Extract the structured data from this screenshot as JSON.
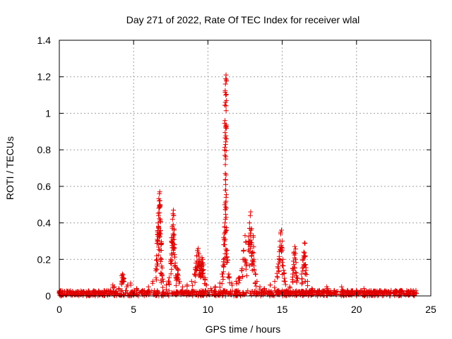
{
  "chart_data": {
    "type": "scatter",
    "title": "Day 271 of 2022, Rate Of TEC Index for receiver wlal",
    "xlabel": "GPS time / hours",
    "ylabel": "ROTI / TECUs",
    "xlim": [
      0,
      25
    ],
    "ylim": [
      0,
      1.4
    ],
    "xticks": [
      0,
      5,
      10,
      15,
      20,
      25
    ],
    "xtick_labels": [
      "0",
      "5",
      "10",
      "15",
      "20",
      "25"
    ],
    "yticks": [
      0,
      0.2,
      0.4,
      0.6,
      0.8,
      1.0,
      1.2,
      1.4
    ],
    "ytick_labels": [
      "0",
      "0.2",
      "0.4",
      "0.6",
      "0.8",
      "1",
      "1.2",
      "1.4"
    ],
    "grid": true,
    "marker": "plus",
    "color": "#e00000",
    "baseline_noise": {
      "x_range": [
        0,
        24
      ],
      "y_range": [
        0.0,
        0.03
      ]
    },
    "series": [
      {
        "points": [
          [
            0.05,
            0.02
          ],
          [
            0.2,
            0.015
          ],
          [
            0.5,
            0.01
          ],
          [
            0.8,
            0.012
          ],
          [
            1.2,
            0.015
          ],
          [
            1.6,
            0.02
          ],
          [
            2.0,
            0.025
          ],
          [
            2.4,
            0.02
          ],
          [
            2.8,
            0.018
          ],
          [
            3.2,
            0.03
          ],
          [
            3.6,
            0.06
          ],
          [
            3.7,
            0.05
          ],
          [
            4.0,
            0.04
          ],
          [
            4.2,
            0.11
          ],
          [
            4.25,
            0.12
          ],
          [
            4.3,
            0.1
          ],
          [
            4.6,
            0.06
          ],
          [
            4.8,
            0.07
          ],
          [
            5.2,
            0.04
          ],
          [
            5.6,
            0.03
          ],
          [
            6.0,
            0.05
          ],
          [
            6.3,
            0.08
          ],
          [
            6.5,
            0.15
          ],
          [
            6.55,
            0.22
          ],
          [
            6.6,
            0.3
          ],
          [
            6.62,
            0.35
          ],
          [
            6.65,
            0.4
          ],
          [
            6.68,
            0.44
          ],
          [
            6.7,
            0.48
          ],
          [
            6.72,
            0.52
          ],
          [
            6.74,
            0.56
          ],
          [
            6.76,
            0.57
          ],
          [
            6.78,
            0.5
          ],
          [
            6.8,
            0.42
          ],
          [
            6.82,
            0.34
          ],
          [
            6.85,
            0.28
          ],
          [
            6.88,
            0.2
          ],
          [
            6.9,
            0.12
          ],
          [
            7.0,
            0.08
          ],
          [
            7.2,
            0.06
          ],
          [
            7.4,
            0.1
          ],
          [
            7.5,
            0.2
          ],
          [
            7.55,
            0.3
          ],
          [
            7.6,
            0.38
          ],
          [
            7.62,
            0.42
          ],
          [
            7.65,
            0.45
          ],
          [
            7.68,
            0.47
          ],
          [
            7.7,
            0.44
          ],
          [
            7.72,
            0.36
          ],
          [
            7.75,
            0.28
          ],
          [
            7.8,
            0.18
          ],
          [
            7.85,
            0.1
          ],
          [
            7.95,
            0.15
          ],
          [
            8.0,
            0.14
          ],
          [
            8.1,
            0.08
          ],
          [
            8.3,
            0.05
          ],
          [
            8.6,
            0.06
          ],
          [
            8.9,
            0.08
          ],
          [
            9.1,
            0.12
          ],
          [
            9.2,
            0.18
          ],
          [
            9.25,
            0.22
          ],
          [
            9.3,
            0.25
          ],
          [
            9.35,
            0.26
          ],
          [
            9.4,
            0.23
          ],
          [
            9.45,
            0.2
          ],
          [
            9.5,
            0.15
          ],
          [
            9.55,
            0.19
          ],
          [
            9.6,
            0.21
          ],
          [
            9.65,
            0.2
          ],
          [
            9.7,
            0.17
          ],
          [
            9.8,
            0.1
          ],
          [
            9.9,
            0.06
          ],
          [
            10.2,
            0.04
          ],
          [
            10.5,
            0.05
          ],
          [
            10.8,
            0.07
          ],
          [
            11.0,
            0.12
          ],
          [
            11.05,
            0.2
          ],
          [
            11.1,
            0.28
          ],
          [
            11.12,
            0.34
          ],
          [
            11.15,
            0.4
          ],
          [
            11.18,
            0.42
          ],
          [
            11.2,
            0.58
          ],
          [
            11.22,
            0.54
          ],
          [
            11.15,
            0.77
          ],
          [
            11.2,
            0.75
          ],
          [
            11.15,
            0.96
          ],
          [
            11.2,
            0.93
          ],
          [
            11.18,
            1.06
          ],
          [
            11.2,
            1.1
          ],
          [
            11.18,
            1.16
          ],
          [
            11.2,
            1.19
          ],
          [
            11.22,
            1.21
          ],
          [
            11.25,
            0.36
          ],
          [
            11.3,
            0.25
          ],
          [
            11.4,
            0.12
          ],
          [
            11.6,
            0.07
          ],
          [
            11.9,
            0.08
          ],
          [
            12.1,
            0.1
          ],
          [
            12.3,
            0.15
          ],
          [
            12.4,
            0.25
          ],
          [
            12.5,
            0.33
          ],
          [
            12.6,
            0.18
          ],
          [
            12.75,
            0.3
          ],
          [
            12.8,
            0.4
          ],
          [
            12.85,
            0.44
          ],
          [
            12.88,
            0.46
          ],
          [
            12.9,
            0.36
          ],
          [
            12.95,
            0.29
          ],
          [
            13.0,
            0.24
          ],
          [
            13.05,
            0.33
          ],
          [
            13.1,
            0.2
          ],
          [
            13.2,
            0.12
          ],
          [
            13.3,
            0.08
          ],
          [
            13.5,
            0.05
          ],
          [
            13.8,
            0.04
          ],
          [
            14.2,
            0.06
          ],
          [
            14.5,
            0.08
          ],
          [
            14.7,
            0.16
          ],
          [
            14.8,
            0.2
          ],
          [
            14.85,
            0.3
          ],
          [
            14.9,
            0.34
          ],
          [
            14.95,
            0.36
          ],
          [
            15.0,
            0.3
          ],
          [
            15.05,
            0.2
          ],
          [
            15.1,
            0.14
          ],
          [
            15.2,
            0.08
          ],
          [
            15.5,
            0.05
          ],
          [
            15.7,
            0.12
          ],
          [
            15.75,
            0.19
          ],
          [
            15.8,
            0.24
          ],
          [
            15.85,
            0.27
          ],
          [
            15.9,
            0.2
          ],
          [
            16.0,
            0.1
          ],
          [
            16.3,
            0.12
          ],
          [
            16.4,
            0.2
          ],
          [
            16.45,
            0.24
          ],
          [
            16.5,
            0.29
          ],
          [
            16.55,
            0.22
          ],
          [
            16.6,
            0.14
          ],
          [
            16.7,
            0.08
          ],
          [
            17.0,
            0.04
          ],
          [
            17.5,
            0.03
          ],
          [
            18.0,
            0.05
          ],
          [
            18.5,
            0.03
          ],
          [
            19.0,
            0.05
          ],
          [
            19.4,
            0.03
          ],
          [
            20.0,
            0.03
          ],
          [
            20.5,
            0.04
          ],
          [
            21.0,
            0.02
          ],
          [
            21.5,
            0.02
          ],
          [
            22.0,
            0.02
          ],
          [
            22.5,
            0.02
          ],
          [
            23.0,
            0.03
          ],
          [
            23.5,
            0.02
          ],
          [
            24.0,
            0.02
          ]
        ]
      }
    ]
  }
}
